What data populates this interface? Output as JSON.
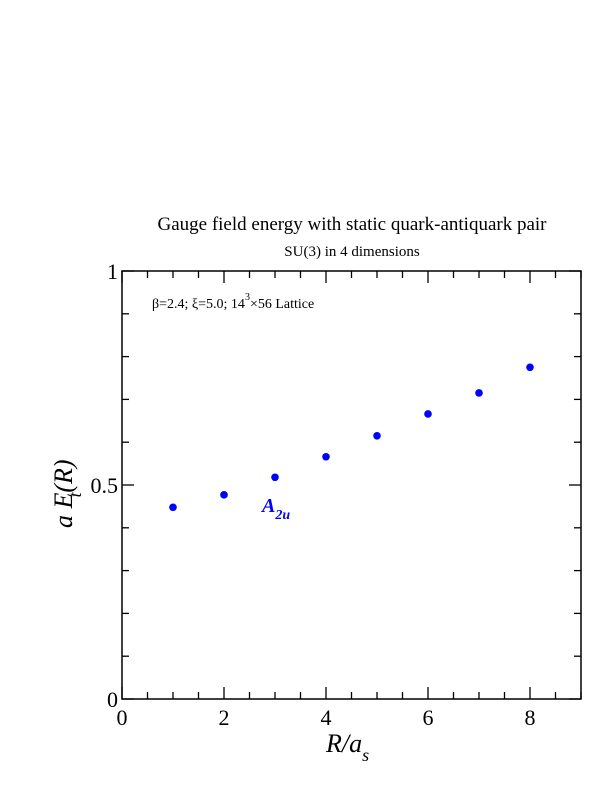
{
  "chart_data": {
    "type": "scatter",
    "title": "Gauge field energy with static quark-antiquark pair",
    "subtitle": "SU(3) in 4 dimensions",
    "xlabel": {
      "main": "R/a",
      "sub": "s"
    },
    "ylabel": {
      "main": "a E(R)",
      "sub": "t"
    },
    "xlim": [
      0,
      9
    ],
    "ylim": [
      0,
      1
    ],
    "xticks": [
      0,
      2,
      4,
      6,
      8
    ],
    "xtick_labels": [
      "0",
      "2",
      "4",
      "6",
      "8"
    ],
    "yticks": [
      0,
      0.5,
      1
    ],
    "ytick_labels": [
      "0",
      "0.5",
      "1"
    ],
    "x_minor_step": 0.5,
    "y_minor_step": 0.1,
    "grid": false,
    "annotation": {
      "part1": "β=2.4;  ξ=5.0;  14",
      "sup": "3",
      "part2": "×56 Lattice"
    },
    "series": [
      {
        "name": "A",
        "name_sub": "2u",
        "color": "#0000ff",
        "x": [
          1,
          2,
          3,
          4,
          5,
          6,
          7,
          8
        ],
        "y": [
          0.448,
          0.477,
          0.518,
          0.566,
          0.615,
          0.666,
          0.715,
          0.775
        ]
      }
    ]
  }
}
